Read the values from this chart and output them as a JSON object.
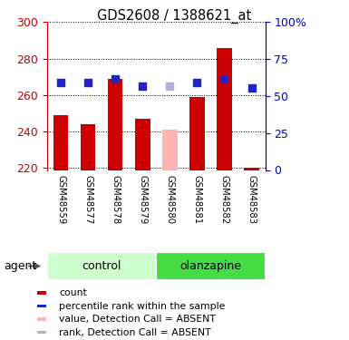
{
  "title": "GDS2608 / 1388621_at",
  "samples": [
    "GSM48559",
    "GSM48577",
    "GSM48578",
    "GSM48579",
    "GSM48580",
    "GSM48581",
    "GSM48582",
    "GSM48583"
  ],
  "bar_values": [
    249,
    244,
    269,
    247,
    241,
    259,
    286,
    220
  ],
  "bar_colors": [
    "#cc0000",
    "#cc0000",
    "#cc0000",
    "#cc0000",
    "#ffb3b3",
    "#cc0000",
    "#cc0000",
    "#cc0000"
  ],
  "dot_values": [
    267,
    267,
    269,
    265,
    265,
    267,
    269,
    264
  ],
  "dot_colors": [
    "#2222cc",
    "#2222cc",
    "#2222cc",
    "#2222cc",
    "#b0b0dd",
    "#2222cc",
    "#2222cc",
    "#2222cc"
  ],
  "baseline": 219,
  "ylim_left": [
    219,
    300
  ],
  "ylim_right": [
    0,
    100
  ],
  "yticks_left": [
    220,
    240,
    260,
    280,
    300
  ],
  "yticks_right": [
    0,
    25,
    50,
    75,
    100
  ],
  "yticklabels_right": [
    "0",
    "25",
    "50",
    "75",
    "100%"
  ],
  "groups": [
    {
      "label": "control",
      "indices": [
        0,
        1,
        2,
        3
      ],
      "color": "#ccffcc"
    },
    {
      "label": "olanzapine",
      "indices": [
        4,
        5,
        6,
        7
      ],
      "color": "#44dd44"
    }
  ],
  "group_row_label": "agent",
  "bar_width": 0.55,
  "dot_size": 38,
  "plot_bg_color": "#ffffff",
  "left_tick_color": "#cc0000",
  "right_tick_color": "#0000cc",
  "xtick_bg_color": "#d0d0d0",
  "legend_items": [
    {
      "label": "count",
      "color": "#cc0000"
    },
    {
      "label": "percentile rank within the sample",
      "color": "#2222cc"
    },
    {
      "label": "value, Detection Call = ABSENT",
      "color": "#ffb3b3"
    },
    {
      "label": "rank, Detection Call = ABSENT",
      "color": "#b0b0dd"
    }
  ]
}
